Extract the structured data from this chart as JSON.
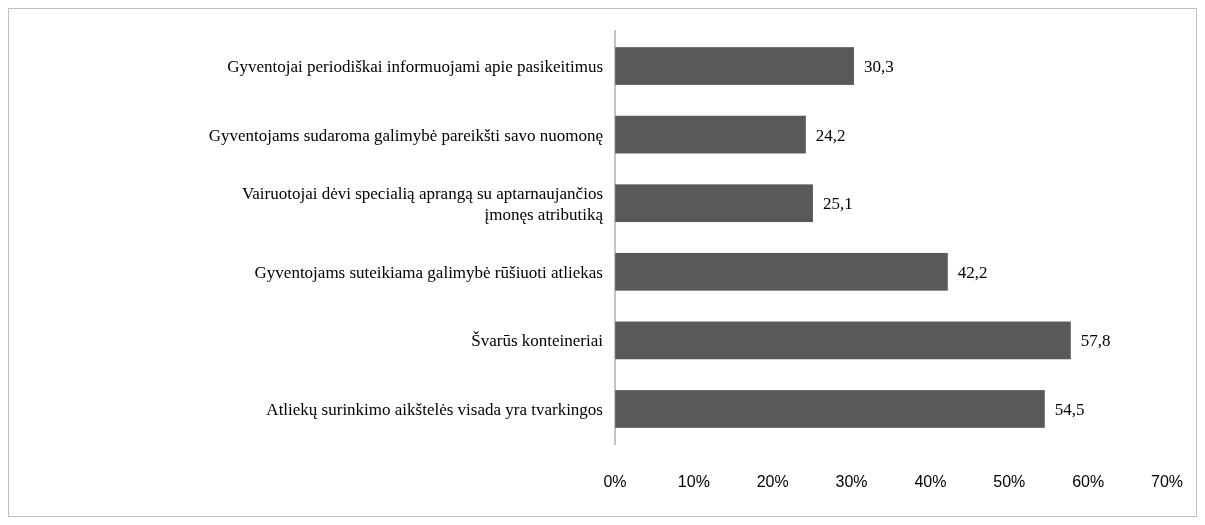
{
  "chart_data": {
    "type": "bar",
    "orientation": "horizontal",
    "categories": [
      "Gyventojai periodiškai informuojami apie pasikeitimus",
      "Gyventojams sudaroma galimybė pareikšti savo nuomonę",
      "Vairuotojai dėvi specialią aprangą su aptarnaujančios įmonęs atributiką",
      "Gyventojams suteikiama galimybė rūšiuoti atliekas",
      "Švarūs konteineriai",
      "Atliekų surinkimo aikštelės visada yra tvarkingos"
    ],
    "values": [
      30.3,
      24.2,
      25.1,
      42.2,
      57.8,
      54.5
    ],
    "value_labels": [
      "30,3",
      "24,2",
      "25,1",
      "42,2",
      "57,8",
      "54,5"
    ],
    "color": "#595959",
    "xlim": [
      0,
      70
    ],
    "xticks": [
      {
        "value": 0,
        "label": "0%"
      },
      {
        "value": 10,
        "label": "10%"
      },
      {
        "value": 20,
        "label": "20%"
      },
      {
        "value": 30,
        "label": "30%"
      },
      {
        "value": 40,
        "label": "40%"
      },
      {
        "value": 50,
        "label": "50%"
      },
      {
        "value": 60,
        "label": "60%"
      },
      {
        "value": 70,
        "label": "70%"
      }
    ],
    "grid": false
  }
}
